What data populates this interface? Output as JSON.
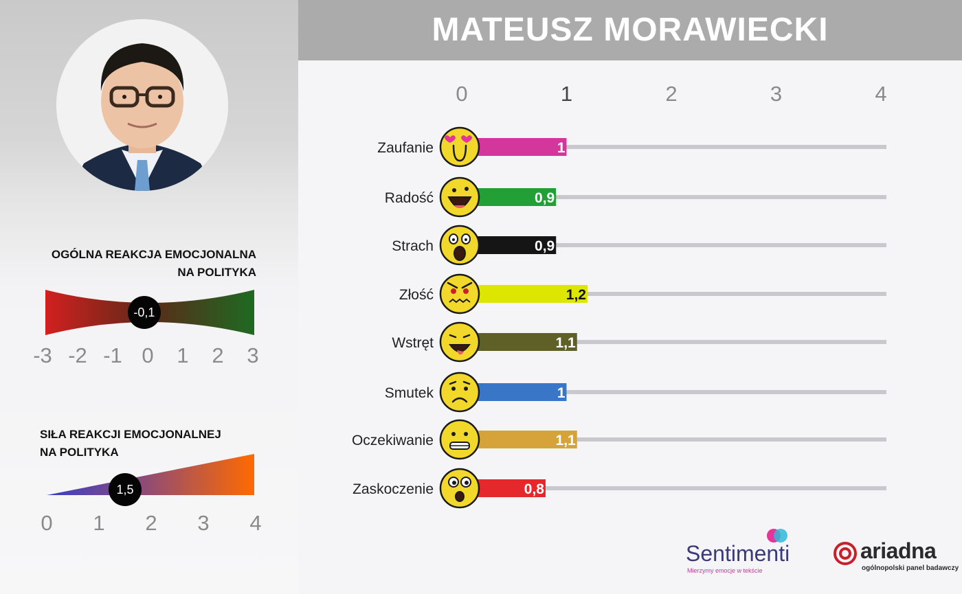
{
  "header": {
    "title": "MATEUSZ MORAWIECKI"
  },
  "overall_reaction": {
    "title_line1": "OGÓLNA REAKCJA EMOCJONALNA",
    "title_line2": "NA POLITYKA",
    "value": -0.1,
    "value_label": "-0,1",
    "ticks": [
      "-3",
      "-2",
      "-1",
      "0",
      "1",
      "2",
      "3"
    ],
    "range": [
      -3,
      3
    ],
    "colors": {
      "negative": "#d3201f",
      "positive": "#1e6a22",
      "middle": "#5b2a18"
    }
  },
  "reaction_strength": {
    "title_line1": "SIŁA REAKCJI EMOCJONALNEJ",
    "title_line2": "NA POLITYKA",
    "value": 1.5,
    "value_label": "1,5",
    "ticks": [
      "0",
      "1",
      "2",
      "3",
      "4"
    ],
    "range": [
      0,
      4
    ],
    "colors": {
      "low": "#3a3fc8",
      "high": "#ff6a00"
    }
  },
  "chart_data": {
    "type": "bar",
    "orientation": "horizontal",
    "title": "MATEUSZ MORAWIECKI",
    "xlim": [
      0,
      4
    ],
    "xticks": [
      "0",
      "1",
      "2",
      "3",
      "4"
    ],
    "categories": [
      "Zaufanie",
      "Radość",
      "Strach",
      "Złość",
      "Wstręt",
      "Smutek",
      "Oczekiwanie",
      "Zaskoczenie"
    ],
    "values": [
      1.0,
      0.9,
      0.9,
      1.2,
      1.1,
      1.0,
      1.1,
      0.8
    ],
    "value_labels": [
      "1",
      "0,9",
      "0,9",
      "1,2",
      "1,1",
      "1",
      "1,1",
      "0,8"
    ],
    "colors": [
      "#d4379c",
      "#22a035",
      "#151515",
      "#dde600",
      "#5f6028",
      "#3a76c8",
      "#d6a33a",
      "#e5282b"
    ],
    "label_colors": [
      "#ffffff",
      "#ffffff",
      "#ffffff",
      "#111111",
      "#ffffff",
      "#ffffff",
      "#ffffff",
      "#ffffff"
    ],
    "icons": [
      "heart-eyes-face-icon",
      "laughing-face-icon",
      "scared-face-icon",
      "angry-face-icon",
      "disgusted-face-icon",
      "sad-face-icon",
      "expectant-face-icon",
      "surprised-face-icon"
    ],
    "grid": false,
    "legend": "none"
  },
  "logos": {
    "sentimenti": {
      "name": "Sentimenti",
      "tagline": "Mierzymy emocje w tekście",
      "colors": {
        "text": "#3a3a7a",
        "pink": "#e5359a",
        "cyan": "#30b8d8"
      }
    },
    "ariadna": {
      "name": "ariadna",
      "tagline": "ogólnopolski panel badawczy",
      "accent": "#c8202a"
    }
  }
}
